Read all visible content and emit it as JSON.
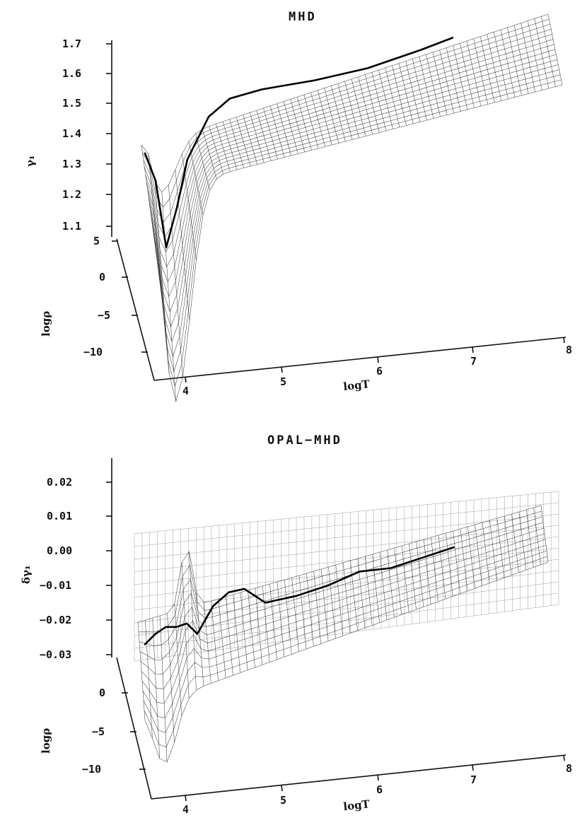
{
  "chart_data": [
    {
      "type": "surface",
      "title": "MHD",
      "xlabel": "logT",
      "ylabel": "logρ",
      "zlabel": "γ₁",
      "x_ticks": [
        "4",
        "5",
        "6",
        "7",
        "8"
      ],
      "y_ticks": [
        "5",
        "0",
        "−5",
        "−10"
      ],
      "z_ticks": [
        "1.1",
        "1.2",
        "1.3",
        "1.4",
        "1.5",
        "1.6",
        "1.7"
      ],
      "xlim": [
        3.8,
        8
      ],
      "ylim": [
        -12,
        5
      ],
      "zlim": [
        1.1,
        1.7
      ],
      "series": [
        {
          "x": [
            3.9,
            4.0,
            4.1,
            4.2,
            4.3,
            4.5,
            4.7,
            5.0,
            5.5,
            6.0,
            6.5,
            6.8
          ],
          "y": [
            1.34,
            1.25,
            1.03,
            1.16,
            1.32,
            1.46,
            1.52,
            1.55,
            1.58,
            1.62,
            1.68,
            1.72
          ]
        }
      ]
    },
    {
      "type": "surface",
      "title": "OPAL−MHD",
      "xlabel": "logT",
      "ylabel": "logρ",
      "zlabel": "δγ₁",
      "x_ticks": [
        "4",
        "5",
        "6",
        "7",
        "8"
      ],
      "y_ticks": [
        "0",
        "−5",
        "−10"
      ],
      "z_ticks": [
        "0.02",
        "0.01",
        "0.00",
        "−0.01",
        "−0.02",
        "−0.03"
      ],
      "xlim": [
        3.8,
        8
      ],
      "ylim": [
        -12,
        5
      ],
      "zlim": [
        -0.03,
        0.025
      ],
      "series": [
        {
          "x": [
            3.85,
            3.95,
            4.05,
            4.15,
            4.25,
            4.35,
            4.5,
            4.65,
            4.8,
            5.0,
            5.3,
            5.6,
            5.9,
            6.2,
            6.5,
            6.8
          ],
          "y": [
            -0.027,
            -0.024,
            -0.022,
            -0.022,
            -0.021,
            -0.024,
            -0.016,
            -0.012,
            -0.011,
            -0.015,
            -0.013,
            -0.01,
            -0.006,
            -0.005,
            -0.002,
            0.001
          ]
        }
      ]
    }
  ]
}
